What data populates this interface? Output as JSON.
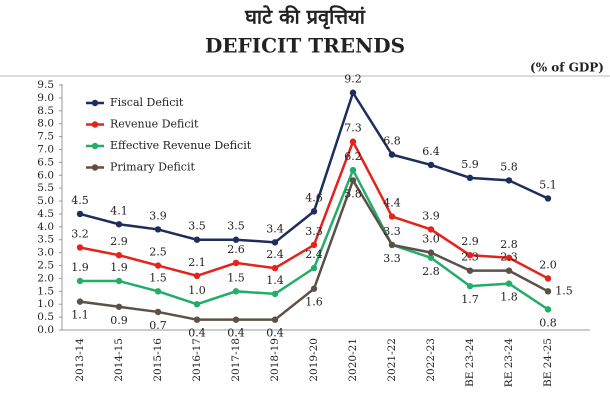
{
  "chart_data": {
    "type": "line",
    "title": "घाटे की प्रवृत्तियां",
    "subtitle": "DEFICIT TRENDS",
    "unit_label": "(% of GDP)",
    "categories": [
      "2013-14",
      "2014-15",
      "2015-16",
      "2016-17",
      "2017-18",
      "2018-19",
      "2019-20",
      "2020-21",
      "2021-22",
      "2022-23",
      "BE 23-24",
      "RE 23-24",
      "BE 24-25"
    ],
    "ylim": [
      0,
      9.5
    ],
    "yticks": [
      {
        "value": 0,
        "label": "0.0"
      },
      0.5,
      {
        "value": 1,
        "label": "1.0"
      },
      1.5,
      {
        "value": 2,
        "label": "2.0"
      },
      2.5,
      {
        "value": 3,
        "label": "3.0"
      },
      3.5,
      {
        "value": 4,
        "label": "4.0"
      },
      4.5,
      {
        "value": 5,
        "label": "5.0"
      },
      5.5,
      {
        "value": 6,
        "label": "6.0"
      },
      6.5,
      {
        "value": 7,
        "label": "7.0"
      },
      7.5,
      {
        "value": 8,
        "label": "8.0"
      },
      8.5,
      {
        "value": 9,
        "label": "9.0"
      },
      9.5
    ],
    "grid": false,
    "series": [
      {
        "name": "Fiscal Deficit",
        "color": "#1f2d5c",
        "values": [
          4.5,
          4.1,
          3.9,
          3.5,
          3.5,
          3.4,
          4.6,
          9.2,
          6.8,
          6.4,
          5.9,
          5.8,
          5.1
        ],
        "value_labels": [
          "4.5",
          "4.1",
          "3.9",
          "3.5",
          "3.5",
          "3.4",
          "4.6",
          "9.2",
          "6.8",
          "6.4",
          "5.9",
          "5.8",
          "5.1"
        ]
      },
      {
        "name": "Revenue Deficit",
        "color": "#e5221b",
        "values": [
          3.2,
          2.9,
          2.5,
          2.1,
          2.6,
          2.4,
          3.3,
          7.3,
          4.4,
          3.9,
          2.9,
          2.8,
          2.0
        ],
        "value_labels": [
          "3.2",
          "2.9",
          "2.5",
          "2.1",
          "2.6",
          "2.4",
          "3.3",
          "7.3",
          "4.4",
          "3.9",
          "2.9",
          "2.8",
          "2.0"
        ]
      },
      {
        "name": "Effective Revenue Deficit",
        "color": "#22ad68",
        "values": [
          1.9,
          1.9,
          1.5,
          1.0,
          1.5,
          1.4,
          2.4,
          6.2,
          3.3,
          2.8,
          1.7,
          1.8,
          0.8
        ],
        "value_labels": [
          "1.9",
          "1.9",
          "1.5",
          "1.0",
          "1.5",
          "1.4",
          "2.4",
          "6.2",
          "3.3",
          "2.8",
          "1.7",
          "1.8",
          "0.8"
        ]
      },
      {
        "name": "Primary Deficit",
        "color": "#5b5149",
        "values": [
          1.1,
          0.9,
          0.7,
          0.4,
          0.4,
          0.4,
          1.6,
          5.8,
          3.3,
          3.0,
          2.3,
          2.3,
          1.5
        ],
        "value_labels": [
          "1.1",
          "0.9",
          "0.7",
          "0.4",
          "0.4",
          "0.4",
          "1.6",
          "5.8",
          "3.3",
          "3.0",
          "2.3",
          "2.3",
          "1.5"
        ]
      }
    ]
  }
}
